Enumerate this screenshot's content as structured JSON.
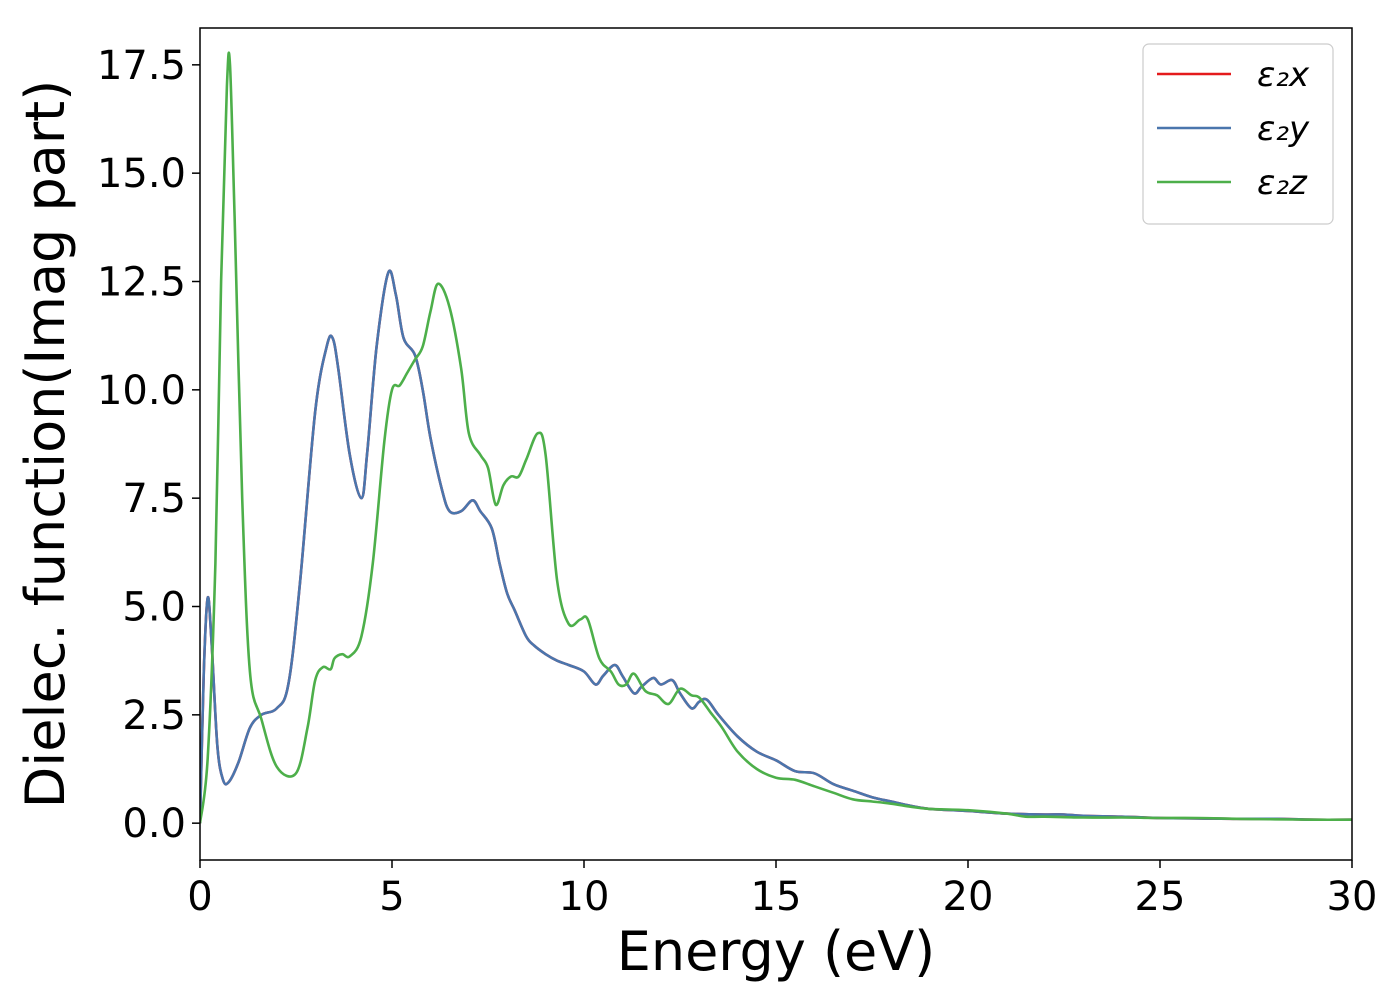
{
  "chart_data": {
    "type": "line",
    "xlabel": "Energy (eV)",
    "ylabel": "Dielec. function(Imag part)",
    "xlim": [
      0,
      30
    ],
    "ylim": [
      -0.85,
      18.35
    ],
    "xticks": [
      0,
      5,
      10,
      15,
      20,
      25,
      30
    ],
    "yticks": [
      0.0,
      2.5,
      5.0,
      7.5,
      10.0,
      12.5,
      15.0,
      17.5
    ],
    "xtick_labels": [
      "0",
      "5",
      "10",
      "15",
      "20",
      "25",
      "30"
    ],
    "ytick_labels": [
      "0.0",
      "2.5",
      "5.0",
      "7.5",
      "10.0",
      "12.5",
      "15.0",
      "17.5"
    ],
    "grid": false,
    "legend_position": "top-right",
    "series": [
      {
        "name": "ε₂x",
        "color": "#e41a1c",
        "x": [
          0,
          0.1,
          0.2,
          0.3,
          0.45,
          0.6,
          0.75,
          1.0,
          1.3,
          1.6,
          2.0,
          2.3,
          2.6,
          3.0,
          3.3,
          3.45,
          3.6,
          3.9,
          4.2,
          4.35,
          4.6,
          4.9,
          5.1,
          5.3,
          5.6,
          5.8,
          6.0,
          6.3,
          6.5,
          6.8,
          7.1,
          7.3,
          7.6,
          7.8,
          8.0,
          8.2,
          8.5,
          8.7,
          9.0,
          9.3,
          9.6,
          10.0,
          10.3,
          10.5,
          10.8,
          11.0,
          11.3,
          11.5,
          11.8,
          12.0,
          12.3,
          12.5,
          12.8,
          13.0,
          13.2,
          13.5,
          14.0,
          14.5,
          15.0,
          15.5,
          16.0,
          16.5,
          17.0,
          17.5,
          18.0,
          18.5,
          19.0,
          20.0,
          21.0,
          22.0,
          22.5,
          23.0,
          24.0,
          25.0,
          26.0,
          27.0,
          28.0,
          29.0,
          30.0
        ],
        "y": [
          0.0,
          3.5,
          5.2,
          4.2,
          1.8,
          1.0,
          0.95,
          1.4,
          2.2,
          2.5,
          2.65,
          3.2,
          5.5,
          9.5,
          11.0,
          11.2,
          10.5,
          8.5,
          7.5,
          8.5,
          11.0,
          12.7,
          12.2,
          11.2,
          10.8,
          10.0,
          8.9,
          7.7,
          7.2,
          7.2,
          7.45,
          7.2,
          6.8,
          6.0,
          5.3,
          4.9,
          4.3,
          4.1,
          3.9,
          3.75,
          3.65,
          3.5,
          3.2,
          3.4,
          3.65,
          3.4,
          3.0,
          3.15,
          3.35,
          3.2,
          3.3,
          3.0,
          2.65,
          2.8,
          2.85,
          2.5,
          2.0,
          1.65,
          1.45,
          1.2,
          1.15,
          0.9,
          0.75,
          0.6,
          0.5,
          0.4,
          0.33,
          0.28,
          0.22,
          0.2,
          0.2,
          0.17,
          0.15,
          0.12,
          0.11,
          0.1,
          0.1,
          0.08,
          0.08
        ]
      },
      {
        "name": "ε₂y",
        "color": "#4a76ad",
        "x": [
          0,
          0.1,
          0.2,
          0.3,
          0.45,
          0.6,
          0.75,
          1.0,
          1.3,
          1.6,
          2.0,
          2.3,
          2.6,
          3.0,
          3.3,
          3.45,
          3.6,
          3.9,
          4.2,
          4.35,
          4.6,
          4.9,
          5.1,
          5.3,
          5.6,
          5.8,
          6.0,
          6.3,
          6.5,
          6.8,
          7.1,
          7.3,
          7.6,
          7.8,
          8.0,
          8.2,
          8.5,
          8.7,
          9.0,
          9.3,
          9.6,
          10.0,
          10.3,
          10.5,
          10.8,
          11.0,
          11.3,
          11.5,
          11.8,
          12.0,
          12.3,
          12.5,
          12.8,
          13.0,
          13.2,
          13.5,
          14.0,
          14.5,
          15.0,
          15.5,
          16.0,
          16.5,
          17.0,
          17.5,
          18.0,
          18.5,
          19.0,
          20.0,
          21.0,
          22.0,
          22.5,
          23.0,
          24.0,
          25.0,
          26.0,
          27.0,
          28.0,
          29.0,
          30.0
        ],
        "y": [
          0.0,
          3.5,
          5.2,
          4.2,
          1.8,
          1.0,
          0.95,
          1.4,
          2.2,
          2.5,
          2.65,
          3.2,
          5.5,
          9.5,
          11.0,
          11.2,
          10.5,
          8.5,
          7.5,
          8.5,
          11.0,
          12.7,
          12.2,
          11.2,
          10.8,
          10.0,
          8.9,
          7.7,
          7.2,
          7.2,
          7.45,
          7.2,
          6.8,
          6.0,
          5.3,
          4.9,
          4.3,
          4.1,
          3.9,
          3.75,
          3.65,
          3.5,
          3.2,
          3.4,
          3.65,
          3.4,
          3.0,
          3.15,
          3.35,
          3.2,
          3.3,
          3.0,
          2.65,
          2.8,
          2.85,
          2.5,
          2.0,
          1.65,
          1.45,
          1.2,
          1.15,
          0.9,
          0.75,
          0.6,
          0.5,
          0.4,
          0.33,
          0.28,
          0.22,
          0.2,
          0.2,
          0.17,
          0.15,
          0.12,
          0.11,
          0.1,
          0.1,
          0.08,
          0.08
        ]
      },
      {
        "name": "ε₂z",
        "color": "#4daf4a",
        "x": [
          0,
          0.2,
          0.4,
          0.55,
          0.7,
          0.78,
          0.9,
          1.1,
          1.3,
          1.6,
          2.0,
          2.5,
          2.8,
          3.0,
          3.2,
          3.4,
          3.5,
          3.7,
          3.9,
          4.2,
          4.5,
          4.8,
          5.0,
          5.2,
          5.4,
          5.6,
          5.8,
          6.0,
          6.2,
          6.5,
          6.8,
          7.0,
          7.3,
          7.5,
          7.7,
          7.9,
          8.1,
          8.3,
          8.5,
          8.8,
          9.0,
          9.3,
          9.6,
          9.9,
          10.1,
          10.4,
          10.7,
          10.9,
          11.1,
          11.3,
          11.6,
          11.9,
          12.2,
          12.5,
          12.8,
          13.0,
          13.3,
          13.6,
          14.0,
          14.5,
          15.0,
          15.5,
          16.0,
          16.5,
          17.0,
          17.5,
          18.0,
          18.5,
          19.0,
          20.0,
          21.0,
          21.5,
          22.0,
          23.0,
          24.0,
          25.0,
          26.0,
          27.0,
          28.0,
          29.0,
          30.0
        ],
        "y": [
          0.0,
          1.5,
          6.0,
          12.5,
          17.0,
          17.5,
          14.0,
          7.5,
          3.5,
          2.4,
          1.3,
          1.15,
          2.2,
          3.3,
          3.6,
          3.55,
          3.8,
          3.9,
          3.85,
          4.3,
          6.0,
          8.8,
          10.0,
          10.1,
          10.4,
          10.7,
          11.0,
          11.8,
          12.45,
          11.9,
          10.5,
          9.0,
          8.5,
          8.2,
          7.35,
          7.8,
          8.0,
          8.0,
          8.4,
          9.0,
          8.5,
          5.6,
          4.6,
          4.7,
          4.7,
          3.8,
          3.5,
          3.2,
          3.2,
          3.45,
          3.05,
          2.95,
          2.75,
          3.1,
          2.95,
          2.9,
          2.55,
          2.2,
          1.65,
          1.25,
          1.05,
          1.0,
          0.85,
          0.7,
          0.55,
          0.5,
          0.45,
          0.38,
          0.33,
          0.3,
          0.22,
          0.15,
          0.15,
          0.13,
          0.13,
          0.12,
          0.12,
          0.1,
          0.09,
          0.08,
          0.08
        ]
      }
    ]
  }
}
